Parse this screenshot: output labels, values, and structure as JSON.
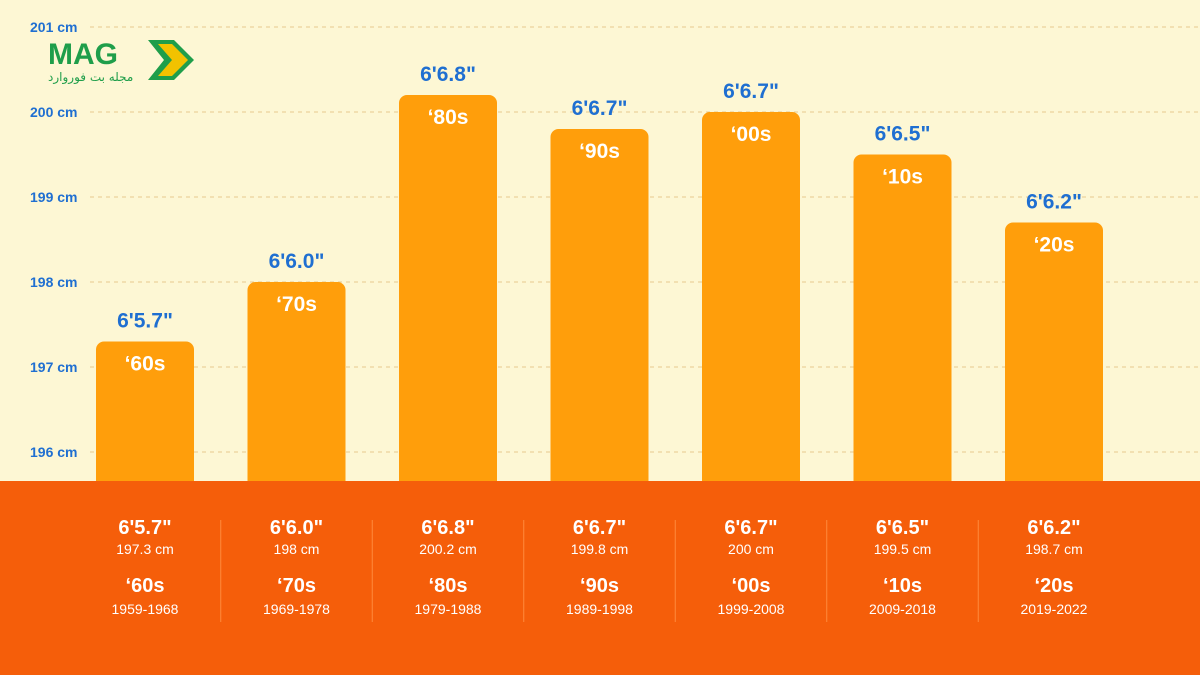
{
  "logo": {
    "text": "MAG",
    "subtitle": "مجله بت فوروارد",
    "colors": {
      "green": "#1f9e4a",
      "yellow": "#f2c200"
    }
  },
  "colors": {
    "background": "#fdf7d4",
    "bar": "#ff9e0b",
    "band": "#f55e0a",
    "value_text": "#1f6fd1",
    "axis_text": "#1f6fd1"
  },
  "chart_data": {
    "type": "bar",
    "categories": [
      "‘60s",
      "‘70s",
      "‘80s",
      "‘90s",
      "‘00s",
      "‘10s",
      "‘20s"
    ],
    "values": [
      197.3,
      198,
      200.2,
      199.8,
      200,
      199.5,
      198.7
    ],
    "value_labels": [
      "6'5.7\"",
      "6'6.0\"",
      "6'6.8\"",
      "6'6.7\"",
      "6'6.7\"",
      "6'6.5\"",
      "6'6.2\""
    ],
    "cm_labels": [
      "197.3 cm",
      "198 cm",
      "200.2 cm",
      "199.8 cm",
      "200 cm",
      "199.5 cm",
      "198.7 cm"
    ],
    "year_ranges": [
      "1959-1968",
      "1969-1978",
      "1979-1988",
      "1989-1998",
      "1999-2008",
      "2009-2018",
      "2019-2022"
    ],
    "ylim": [
      196,
      201
    ],
    "yticks": [
      196,
      197,
      198,
      199,
      200,
      201
    ],
    "ytick_labels": [
      "196 cm",
      "197 cm",
      "198 cm",
      "199 cm",
      "200 cm",
      "201 cm"
    ],
    "grid": true
  }
}
